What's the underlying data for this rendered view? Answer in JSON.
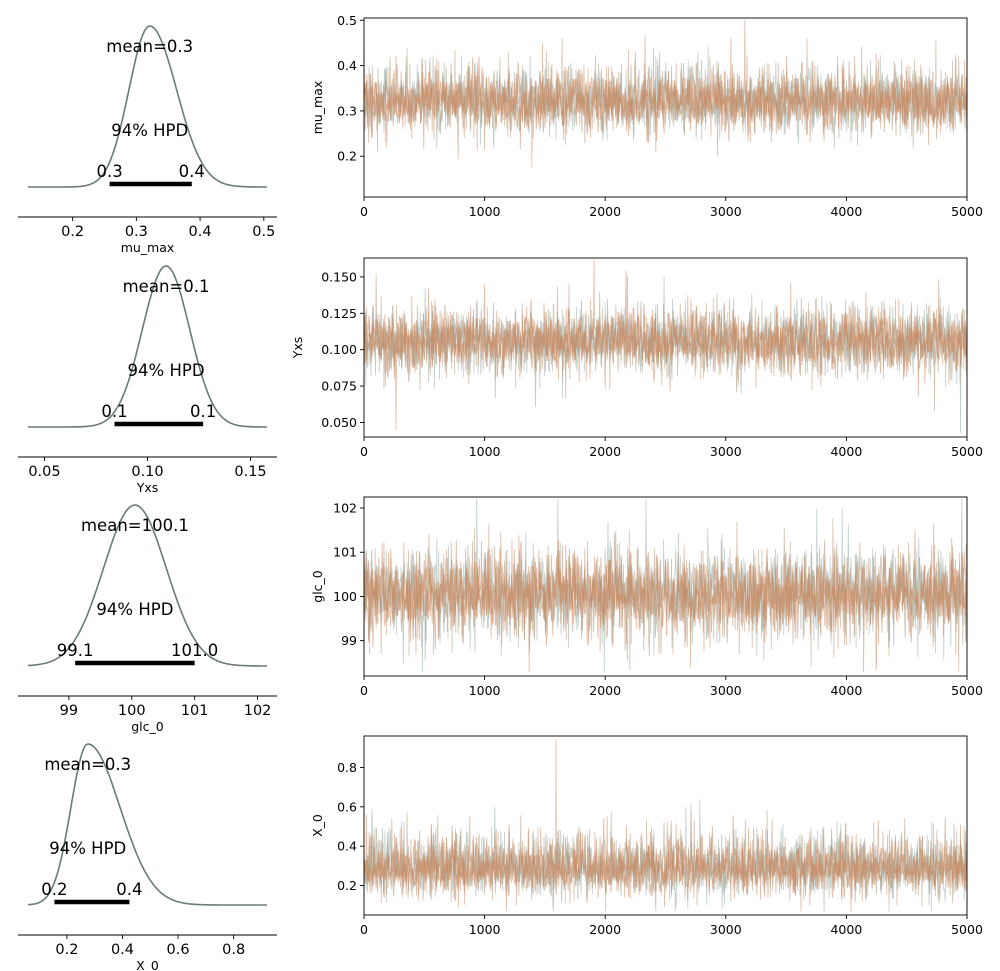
{
  "colors": {
    "density": "#6b7b78",
    "hpd_bar": "#000000",
    "trace_chain_a": "#8fa89f",
    "trace_chain_b": "#c8845a",
    "trace_chain_c": "#b89a7c",
    "axis": "#000000"
  },
  "chart_data": [
    {
      "type": "area",
      "variable": "mu_max",
      "xlabel": "mu_max",
      "mean_label": "mean=0.3",
      "hpd_label": "94% HPD",
      "hpd_low_label": "0.3",
      "hpd_high_label": "0.4",
      "density": {
        "mean": 0.321,
        "sd": 0.035,
        "skew": 0.2
      },
      "hpd": [
        0.258,
        0.387
      ],
      "xlim": [
        0.13,
        0.505
      ],
      "xticks": [
        0.2,
        0.3,
        0.4,
        0.5
      ],
      "xtick_labels": [
        "0.2",
        "0.3",
        "0.4",
        "0.5"
      ]
    },
    {
      "type": "line",
      "variable": "mu_max",
      "ylabel": "mu_max",
      "xlim": [
        0,
        5000
      ],
      "ylim": [
        0.11,
        0.505
      ],
      "xticks": [
        0,
        1000,
        2000,
        3000,
        4000,
        5000
      ],
      "xtick_labels": [
        "0",
        "1000",
        "2000",
        "3000",
        "4000",
        "5000"
      ],
      "yticks": [
        0.2,
        0.3,
        0.4,
        0.5
      ],
      "ytick_labels": [
        "0.2",
        "0.3",
        "0.4",
        "0.5"
      ],
      "trace": {
        "center": 0.321,
        "spread": 0.035,
        "skew": 0.2
      }
    },
    {
      "type": "area",
      "variable": "Yxs",
      "xlabel": "Yxs",
      "mean_label": "mean=0.1",
      "hpd_label": "94% HPD",
      "hpd_low_label": "0.1",
      "hpd_high_label": "0.1",
      "density": {
        "mean": 0.109,
        "sd": 0.0115,
        "skew": 0.0
      },
      "hpd": [
        0.084,
        0.127
      ],
      "xlim": [
        0.042,
        0.158
      ],
      "xticks": [
        0.05,
        0.1,
        0.15
      ],
      "xtick_labels": [
        "0.05",
        "0.10",
        "0.15"
      ]
    },
    {
      "type": "line",
      "variable": "Yxs",
      "ylabel": "Yxs",
      "xlim": [
        0,
        5000
      ],
      "ylim": [
        0.04,
        0.163
      ],
      "xticks": [
        0,
        1000,
        2000,
        3000,
        4000,
        5000
      ],
      "xtick_labels": [
        "0",
        "1000",
        "2000",
        "3000",
        "4000",
        "5000"
      ],
      "yticks": [
        0.05,
        0.075,
        0.1,
        0.125,
        0.15
      ],
      "ytick_labels": [
        "0.050",
        "0.075",
        "0.100",
        "0.125",
        "0.150"
      ],
      "trace": {
        "center": 0.106,
        "spread": 0.0115,
        "skew": 0.0
      }
    },
    {
      "type": "area",
      "variable": "glc_0",
      "xlabel": "glc_0",
      "mean_label": "mean=100.1",
      "hpd_label": "94% HPD",
      "hpd_low_label": "99.1",
      "hpd_high_label": "101.0",
      "density": {
        "mean": 100.05,
        "sd": 0.5,
        "skew": 0.0
      },
      "hpd": [
        99.1,
        101.0
      ],
      "xlim": [
        98.35,
        102.15
      ],
      "xticks": [
        99,
        100,
        101,
        102
      ],
      "xtick_labels": [
        "99",
        "100",
        "101",
        "102"
      ]
    },
    {
      "type": "line",
      "variable": "glc_0",
      "ylabel": "glc_0",
      "xlim": [
        0,
        5000
      ],
      "ylim": [
        98.2,
        102.25
      ],
      "xticks": [
        0,
        1000,
        2000,
        3000,
        4000,
        5000
      ],
      "xtick_labels": [
        "0",
        "1000",
        "2000",
        "3000",
        "4000",
        "5000"
      ],
      "yticks": [
        99,
        100,
        101,
        102
      ],
      "ytick_labels": [
        "99",
        "100",
        "101",
        "102"
      ],
      "trace": {
        "center": 100.05,
        "spread": 0.5,
        "skew": 0.0
      }
    },
    {
      "type": "area",
      "variable": "X_0",
      "xlabel": "X_0",
      "mean_label": "mean=0.3",
      "hpd_label": "94% HPD",
      "hpd_low_label": "0.2",
      "hpd_high_label": "0.4",
      "density": {
        "mean": 0.275,
        "sd": 0.075,
        "skew": 0.55
      },
      "hpd": [
        0.155,
        0.425
      ],
      "xlim": [
        0.06,
        0.92
      ],
      "xticks": [
        0.2,
        0.4,
        0.6,
        0.8
      ],
      "xtick_labels": [
        "0.2",
        "0.4",
        "0.6",
        "0.8"
      ]
    },
    {
      "type": "line",
      "variable": "X_0",
      "ylabel": "X_0",
      "xlim": [
        0,
        5000
      ],
      "ylim": [
        0.05,
        0.96
      ],
      "xticks": [
        0,
        1000,
        2000,
        3000,
        4000,
        5000
      ],
      "xtick_labels": [
        "0",
        "1000",
        "2000",
        "3000",
        "4000",
        "5000"
      ],
      "yticks": [
        0.2,
        0.4,
        0.6,
        0.8
      ],
      "ytick_labels": [
        "0.2",
        "0.4",
        "0.6",
        "0.8"
      ],
      "trace": {
        "center": 0.285,
        "spread": 0.07,
        "skew": 0.7
      }
    }
  ]
}
